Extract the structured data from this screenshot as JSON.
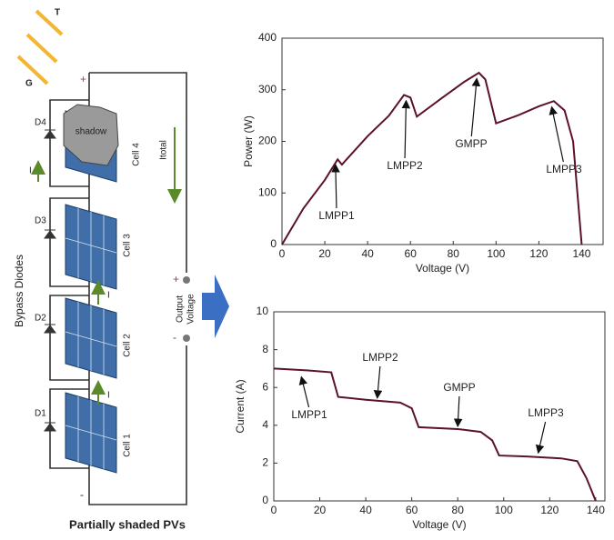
{
  "diagram": {
    "rays": [
      "T",
      "G"
    ],
    "polarity_top": "+",
    "polarity_bottom": "-",
    "diodes": [
      "D4",
      "D3",
      "D2",
      "D1"
    ],
    "cells": [
      "Cell 4",
      "Cell 3",
      "Cell 2",
      "Cell 1"
    ],
    "shadow": "shadow",
    "currents": [
      "I",
      "I",
      "I"
    ],
    "total_current": "Itotal",
    "bypass": "Bypass Diodes",
    "output": [
      "Output",
      "Voltage"
    ],
    "output_plus": "+",
    "output_minus": "-",
    "caption": "Partially shaded PVs"
  },
  "chart_data": [
    {
      "type": "line",
      "xlabel": "Voltage (V)",
      "ylabel": "Power (W)",
      "color": "#5c1030",
      "x": [
        0,
        10,
        20,
        26,
        28,
        40,
        50,
        57,
        60,
        63,
        75,
        85,
        92,
        95,
        100,
        110,
        120,
        127,
        132,
        136,
        140
      ],
      "values": [
        0,
        70,
        125,
        165,
        155,
        210,
        250,
        290,
        285,
        248,
        285,
        315,
        333,
        320,
        235,
        250,
        268,
        278,
        260,
        200,
        0
      ],
      "xlim": [
        0,
        150
      ],
      "xticks": [
        0,
        20,
        40,
        60,
        80,
        100,
        120,
        140
      ],
      "ylim": [
        0,
        400
      ],
      "yticks": [
        0,
        100,
        200,
        300,
        400
      ],
      "annotations": [
        "LMPP1",
        "LMPP2",
        "GMPP",
        "LMPP3"
      ]
    },
    {
      "type": "line",
      "xlabel": "Voltage (V)",
      "ylabel": "Current (A)",
      "color": "#5c1030",
      "x": [
        0,
        15,
        25,
        28,
        40,
        55,
        60,
        63,
        80,
        90,
        95,
        98,
        110,
        125,
        132,
        136,
        140
      ],
      "values": [
        7,
        6.9,
        6.8,
        5.5,
        5.35,
        5.2,
        4.9,
        3.9,
        3.8,
        3.65,
        3.2,
        2.4,
        2.35,
        2.25,
        2.1,
        1.2,
        0
      ],
      "xlim": [
        0,
        144
      ],
      "xticks": [
        0,
        20,
        40,
        60,
        80,
        100,
        120,
        140
      ],
      "ylim": [
        0,
        10
      ],
      "yticks": [
        0,
        2,
        4,
        6,
        8,
        10
      ],
      "annotations": [
        "LMPP1",
        "LMPP2",
        "GMPP",
        "LMPP3"
      ]
    }
  ]
}
